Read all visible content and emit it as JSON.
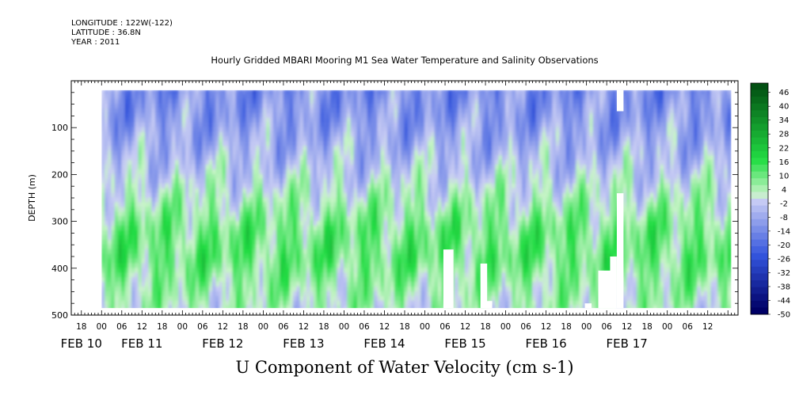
{
  "header": {
    "longitude": "LONGITUDE : 122W(-122)",
    "latitude": "LATITUDE : 36.8N",
    "year": "YEAR : 2011"
  },
  "title": "Hourly Gridded MBARI Mooring M1 Sea Water Temperature and Salinity Observations",
  "colors": {
    "negative_low": "#000066",
    "negative_mid": "#3355dd",
    "negative_high": "#c8ccf4",
    "positive_low": "#c8f4c8",
    "positive_mid": "#22dd44",
    "positive_high": "#004a10",
    "missing": "#ffffff"
  },
  "chart_data": {
    "type": "heatmap",
    "title": "Hourly Gridded MBARI Mooring M1 Sea Water Temperature and Salinity Observations",
    "xlabel": "U Component of Water Velocity (cm s-1)",
    "ylabel": "DEPTH (m)",
    "x_start_hours": -9,
    "x_end_hours": 189,
    "data_start_hours": 0,
    "data_end_hours": 187,
    "ylim": [
      500,
      0
    ],
    "data_depth_range": [
      20,
      485
    ],
    "y_ticks": [
      100,
      200,
      300,
      400,
      500
    ],
    "y_tick_labels": [
      "100",
      "200",
      "300",
      "400",
      "500"
    ],
    "x_hour_labels": [
      "18",
      "00",
      "06",
      "12",
      "18",
      "00",
      "06",
      "12",
      "18",
      "00",
      "06",
      "12",
      "18",
      "00",
      "06",
      "12",
      "18",
      "00",
      "06",
      "12",
      "18",
      "00",
      "06",
      "12",
      "18",
      "00",
      "06",
      "12",
      "18",
      "00",
      "06",
      "12"
    ],
    "x_hour_label_positions": [
      -6,
      0,
      6,
      12,
      18,
      24,
      30,
      36,
      42,
      48,
      54,
      60,
      66,
      72,
      78,
      84,
      90,
      96,
      102,
      108,
      114,
      120,
      126,
      132,
      138,
      144,
      150,
      156,
      162,
      168,
      174,
      180
    ],
    "x_date_labels": [
      "FEB 10",
      "FEB 11",
      "FEB 12",
      "FEB 13",
      "FEB 14",
      "FEB 15",
      "FEB 16",
      "FEB 17"
    ],
    "x_date_label_positions": [
      -6,
      12,
      36,
      60,
      84,
      108,
      132,
      156
    ],
    "colorbar_levels": [
      46,
      40,
      34,
      28,
      22,
      16,
      10,
      4,
      -2,
      -8,
      -14,
      -20,
      -26,
      -32,
      -38,
      -44,
      -50
    ],
    "colorbar_min": -50,
    "colorbar_max": 50,
    "colorbar_step": 3,
    "depth_profile": [
      {
        "depth": 20,
        "value": -14
      },
      {
        "depth": 80,
        "value": -12
      },
      {
        "depth": 140,
        "value": -8
      },
      {
        "depth": 200,
        "value": -3
      },
      {
        "depth": 260,
        "value": 3
      },
      {
        "depth": 320,
        "value": 9
      },
      {
        "depth": 380,
        "value": 10
      },
      {
        "depth": 440,
        "value": 5
      },
      {
        "depth": 485,
        "value": 2
      }
    ],
    "missing_blocks": [
      {
        "hour_start": 101.5,
        "hour_end": 104.5,
        "depth_start": 360,
        "depth_end": 485
      },
      {
        "hour_start": 112.5,
        "hour_end": 114.5,
        "depth_start": 390,
        "depth_end": 485
      },
      {
        "hour_start": 114.0,
        "hour_end": 116.0,
        "depth_start": 470,
        "depth_end": 485
      },
      {
        "hour_start": 143.5,
        "hour_end": 145.5,
        "depth_start": 475,
        "depth_end": 485
      },
      {
        "hour_start": 147.5,
        "hour_end": 152.5,
        "depth_start": 405,
        "depth_end": 485
      },
      {
        "hour_start": 151.0,
        "hour_end": 153.0,
        "depth_start": 375,
        "depth_end": 485
      },
      {
        "hour_start": 153.0,
        "hour_end": 155.0,
        "depth_start": 20,
        "depth_end": 65
      },
      {
        "hour_start": 153.0,
        "hour_end": 155.0,
        "depth_start": 240,
        "depth_end": 485
      }
    ]
  },
  "x_axis_title": "U Component of Water Velocity (cm s-1)",
  "y_axis_title": "DEPTH (m)"
}
